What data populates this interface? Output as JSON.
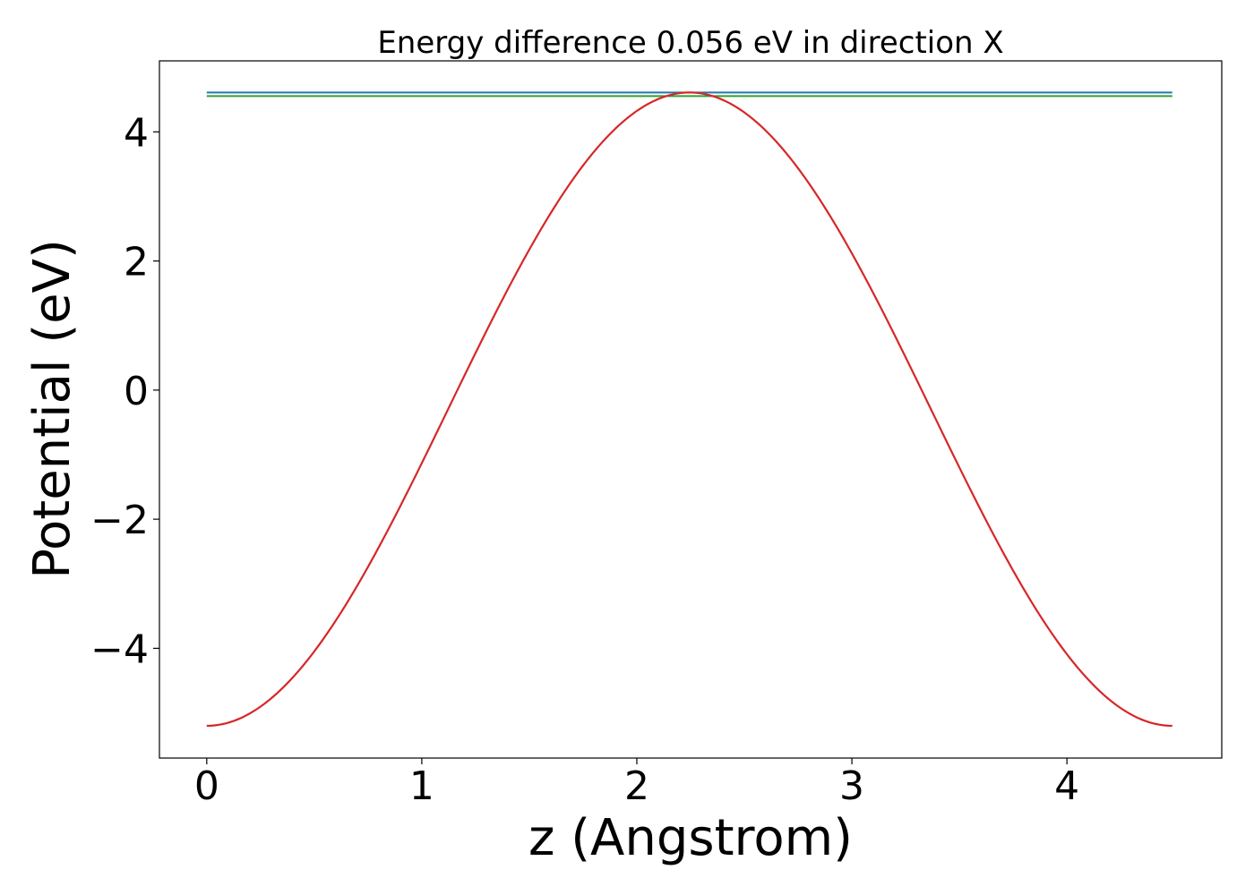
{
  "chart_data": {
    "type": "line",
    "title": "Energy difference 0.056 eV in direction X",
    "xlabel": "z (Angstrom)",
    "ylabel": "Potential (eV)",
    "xlim": [
      -0.22,
      4.72
    ],
    "ylim": [
      -5.7,
      5.1
    ],
    "x_ticks": [
      0,
      1,
      2,
      3,
      4
    ],
    "x_tick_labels": [
      "0",
      "1",
      "2",
      "3",
      "4"
    ],
    "y_ticks": [
      -4,
      -2,
      0,
      2,
      4
    ],
    "y_tick_labels": [
      "−4",
      "−2",
      "0",
      "2",
      "4"
    ],
    "grid": false,
    "series": [
      {
        "color": "#1f77b4",
        "style": "hline",
        "y": 4.61,
        "x_range": [
          0,
          4.49
        ]
      },
      {
        "color": "#2ca02c",
        "style": "hline",
        "y": 4.554,
        "x_range": [
          0,
          4.49
        ]
      },
      {
        "color": "#d62728",
        "style": "curve",
        "model": "cosine",
        "x_range": [
          0,
          4.49
        ],
        "y_min": -5.2,
        "y_max": 4.61,
        "x": [
          0,
          0.5,
          1.0,
          1.5,
          2.0,
          2.245,
          2.5,
          3.0,
          3.5,
          4.0,
          4.49
        ],
        "y": [
          -5.2,
          -3.86,
          -0.66,
          3.0,
          4.47,
          4.61,
          4.44,
          2.98,
          -0.67,
          -3.9,
          -5.2
        ]
      }
    ]
  }
}
